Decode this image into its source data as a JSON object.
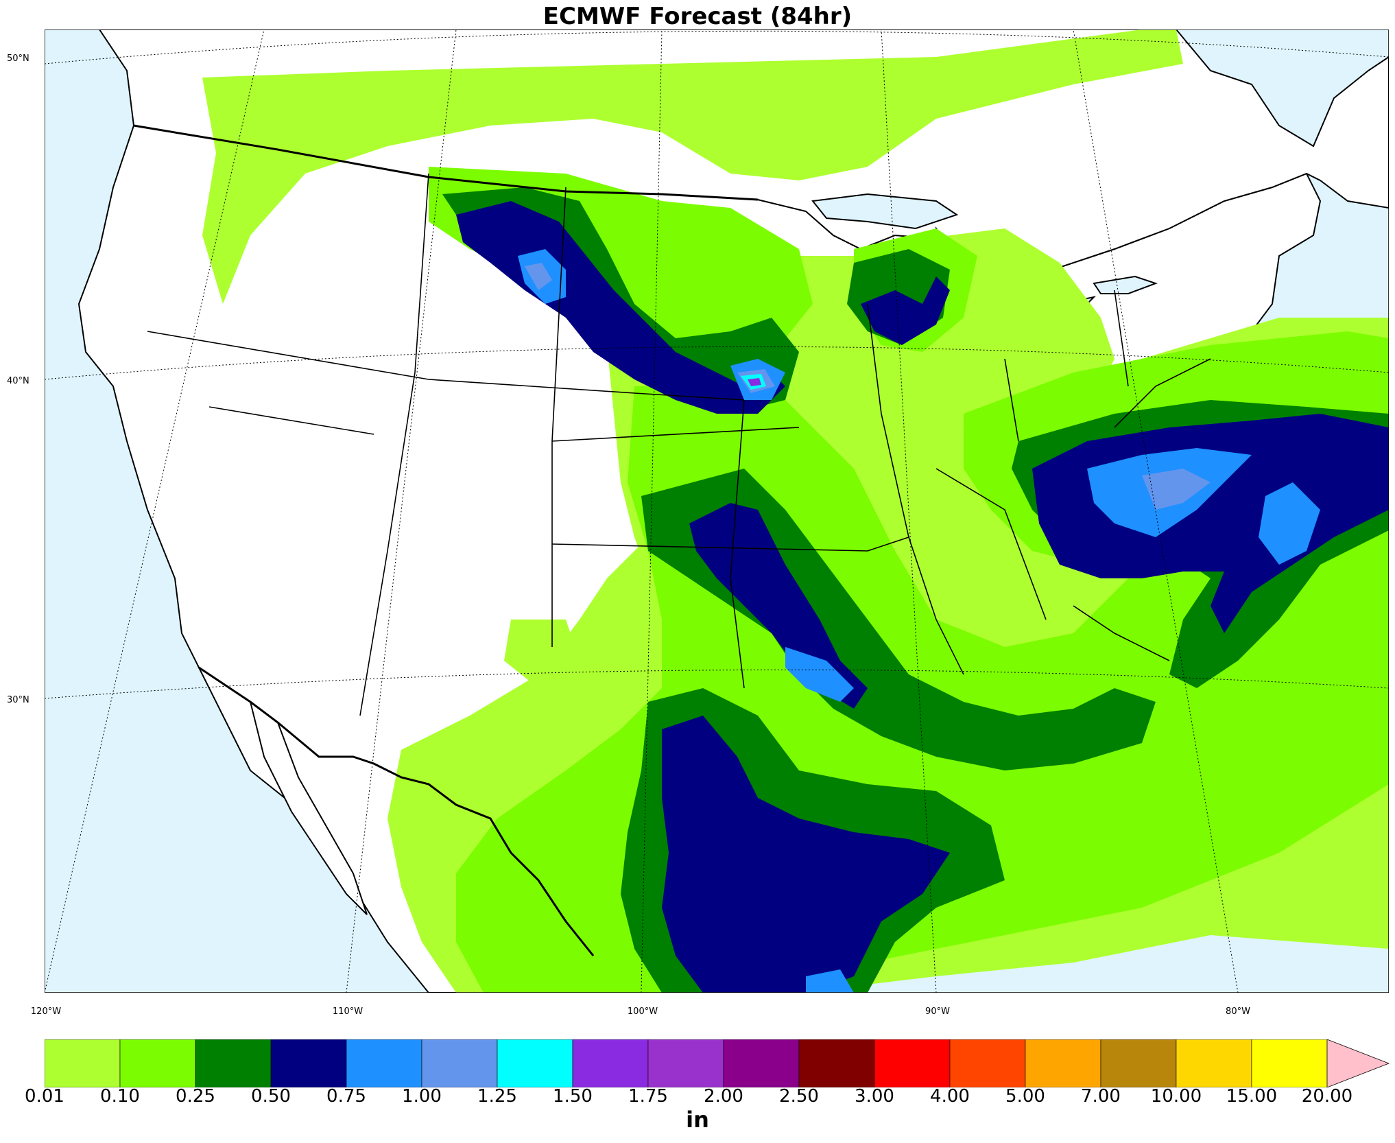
{
  "title": "ECMWF Forecast (84hr)",
  "lat_labels": [
    "50°N",
    "40°N",
    "30°N"
  ],
  "lon_labels": [
    "120°W",
    "110°W",
    "100°W",
    "90°W",
    "80°W"
  ],
  "colorbar": {
    "unit": "in",
    "ticks": [
      "0.01",
      "0.10",
      "0.25",
      "0.50",
      "0.75",
      "1.00",
      "1.25",
      "1.50",
      "1.75",
      "2.00",
      "2.50",
      "3.00",
      "4.00",
      "5.00",
      "7.00",
      "10.00",
      "15.00",
      "20.00"
    ],
    "colors": [
      "#adff2f",
      "#7cfc00",
      "#008000",
      "#000080",
      "#1e90ff",
      "#6495ed",
      "#00ffff",
      "#8a2be2",
      "#9932cc",
      "#8b008b",
      "#800000",
      "#ff0000",
      "#ff4500",
      "#ffa500",
      "#b8860b",
      "#ffd700",
      "#ffff00"
    ],
    "extend_color": "#ffc0cb"
  },
  "colors": {
    "water": "#dff4fc",
    "land": "#ffffff"
  }
}
